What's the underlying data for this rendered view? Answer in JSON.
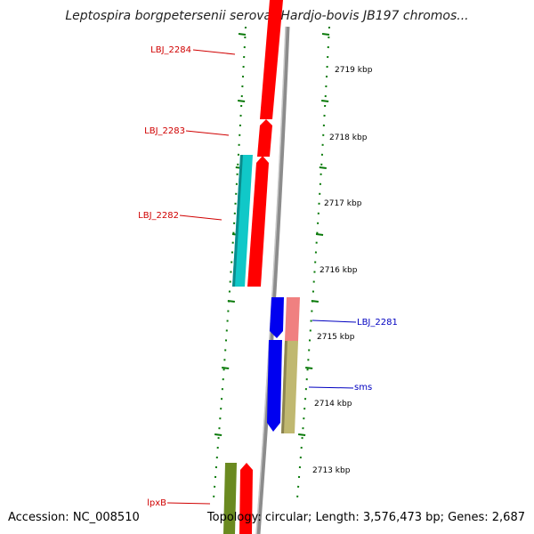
{
  "title": "Leptospira borgpetersenii serovar Hardjo-bovis JB197 chromos...",
  "accession": "Accession: NC_008510",
  "topology": "Topology: circular; Length: 3,576,473 bp; Genes: 2,687",
  "colors": {
    "red": "#ff0000",
    "cyan": "#10c8c8",
    "blue": "#0000f0",
    "pink": "#f08080",
    "khaki": "#c0b870",
    "olive": "#6a8a20",
    "backbone": "#8c8c8c",
    "tick": "#0a7a0a",
    "label_red": "#d00000",
    "label_blue": "#0000c0"
  },
  "scale_labels": [
    "2719 kbp",
    "2718 kbp",
    "2717 kbp",
    "2716 kbp",
    "2715 kbp",
    "2714 kbp",
    "2713 kbp"
  ],
  "gene_labels": [
    {
      "text": "LBJ_2284",
      "color": "#d00000"
    },
    {
      "text": "LBJ_2283",
      "color": "#d00000"
    },
    {
      "text": "LBJ_2282",
      "color": "#d00000"
    },
    {
      "text": "LBJ_2281",
      "color": "#0000c0"
    },
    {
      "text": "sms",
      "color": "#0000c0"
    },
    {
      "text": "lpxB",
      "color": "#d00000"
    }
  ]
}
